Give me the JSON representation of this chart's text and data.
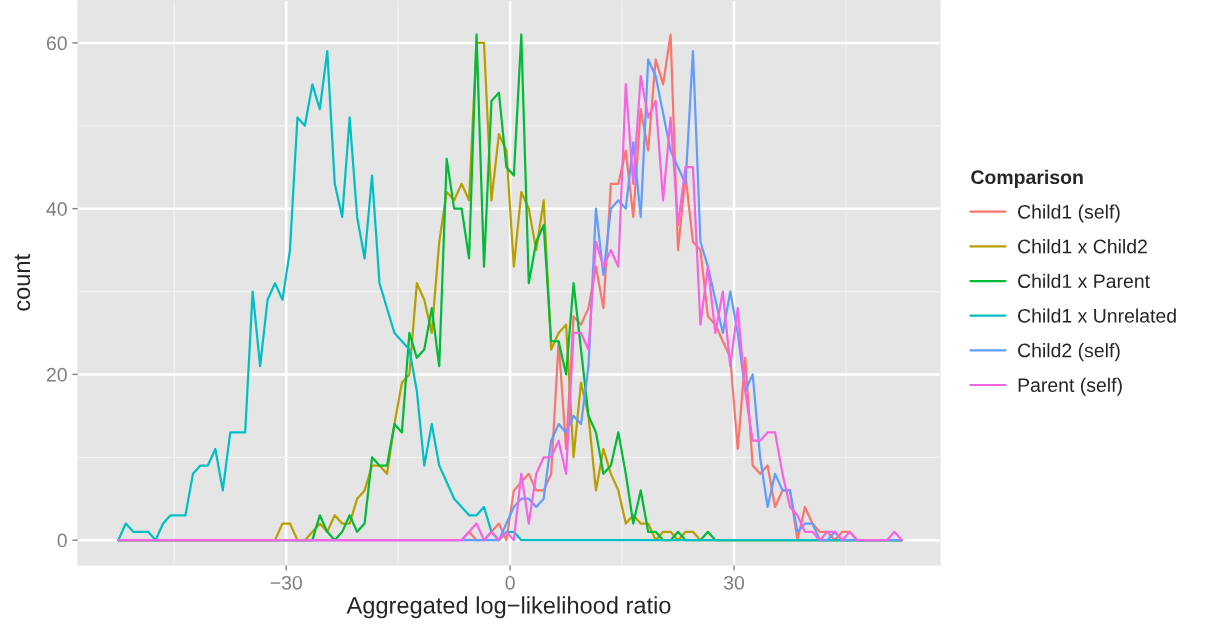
{
  "chart_data": {
    "type": "line",
    "xlabel": "Aggregated log−likelihood ratio",
    "ylabel": "count",
    "legend_title": "Comparison",
    "legend": "right",
    "grid": true,
    "xlim": [
      -57.9,
      57.6
    ],
    "ylim": [
      -3.0,
      65.1
    ],
    "xticks": [
      {
        "value": -30,
        "label": "−30"
      },
      0,
      30
    ],
    "yticks": [
      0,
      20,
      40,
      60
    ],
    "series": [
      {
        "name": "Child1 (self)",
        "color": "#f8766d",
        "x": [
          -52.5,
          -6.5,
          -5.5,
          -4.5,
          -3.5,
          -2.5,
          -1.5,
          -0.5,
          0.5,
          1.5,
          2.5,
          3.5,
          4.5,
          5.5,
          6.5,
          7.5,
          8.5,
          9.5,
          10.5,
          11.5,
          12.5,
          13.5,
          14.5,
          15.5,
          16.5,
          17.5,
          18.5,
          19.5,
          20.5,
          21.5,
          22.5,
          23.5,
          24.5,
          25.5,
          26.5,
          27.5,
          28.5,
          29.5,
          30.5,
          31.5,
          32.5,
          33.5,
          34.5,
          35.5,
          36.5,
          37.5,
          38.5,
          39.5,
          40.5,
          41.5,
          42.5,
          43.5,
          44.5,
          45.5,
          46.5,
          52.5
        ],
        "values": [
          0,
          0,
          1,
          0,
          0,
          1,
          2,
          0,
          6,
          7,
          8,
          6,
          6,
          8,
          24,
          11,
          27,
          26,
          28,
          33,
          28,
          43,
          43,
          47,
          39,
          52,
          47,
          58,
          55,
          61,
          35,
          44,
          36,
          35,
          27,
          26,
          24,
          22,
          11,
          22,
          9,
          8,
          9,
          4,
          6,
          6,
          0,
          4,
          2,
          1,
          1,
          0,
          1,
          1,
          0,
          0
        ]
      },
      {
        "name": "Child1 x Child2",
        "color": "#b79f00",
        "x": [
          -52.5,
          -31.5,
          -30.5,
          -29.5,
          -28.5,
          -27.5,
          -25.5,
          -24.5,
          -23.5,
          -22.5,
          -21.5,
          -20.5,
          -19.5,
          -18.5,
          -17.5,
          -16.5,
          -15.5,
          -14.5,
          -13.5,
          -12.5,
          -11.5,
          -10.5,
          -9.5,
          -8.5,
          -7.5,
          -6.5,
          -5.5,
          -4.5,
          -3.5,
          -2.5,
          -1.5,
          -0.5,
          0.5,
          1.5,
          2.5,
          3.5,
          4.5,
          5.5,
          6.5,
          7.5,
          8.5,
          9.5,
          10.5,
          11.5,
          12.5,
          13.5,
          14.5,
          15.5,
          16.5,
          17.5,
          18.5,
          19.5,
          20.5,
          21.5,
          22.5,
          23.5,
          24.5,
          25.5,
          52.5
        ],
        "values": [
          0,
          0,
          2,
          2,
          0,
          0,
          2,
          1,
          3,
          2,
          2,
          5,
          6,
          9,
          9,
          8,
          14,
          19,
          20,
          31,
          29,
          25,
          36,
          42,
          41,
          43,
          41,
          60,
          60,
          41,
          49,
          47,
          33,
          42,
          40,
          35,
          41,
          23,
          25,
          26,
          10,
          19,
          15,
          6,
          11,
          8,
          6,
          2,
          3,
          2,
          2,
          0,
          1,
          1,
          0,
          1,
          1,
          0,
          0
        ]
      },
      {
        "name": "Child1 x Parent",
        "color": "#00ba38",
        "x": [
          -52.5,
          -26.5,
          -25.5,
          -24.5,
          -23.5,
          -22.5,
          -21.5,
          -20.5,
          -19.5,
          -18.5,
          -17.5,
          -16.5,
          -15.5,
          -14.5,
          -13.5,
          -12.5,
          -11.5,
          -10.5,
          -9.5,
          -8.5,
          -7.5,
          -6.5,
          -5.5,
          -4.5,
          -3.5,
          -2.5,
          -1.5,
          -0.5,
          0.5,
          1.5,
          2.5,
          3.5,
          4.5,
          5.5,
          6.5,
          7.5,
          8.5,
          9.5,
          10.5,
          11.5,
          12.5,
          13.5,
          14.5,
          15.5,
          16.5,
          17.5,
          18.5,
          19.5,
          20.5,
          21.5,
          22.5,
          23.5,
          24.5,
          25.5,
          26.5,
          27.5,
          52.5
        ],
        "values": [
          0,
          0,
          3,
          1,
          0,
          1,
          3,
          1,
          2,
          10,
          9,
          9,
          14,
          13,
          25,
          22,
          23,
          28,
          21,
          46,
          40,
          40,
          34,
          61,
          33,
          53,
          54,
          45,
          44,
          61,
          31,
          36,
          38,
          24,
          24,
          20,
          31,
          23,
          15,
          13,
          8,
          9,
          13,
          8,
          2,
          6,
          1,
          1,
          0,
          0,
          1,
          0,
          0,
          0,
          1,
          0,
          0
        ]
      },
      {
        "name": "Child1 x Unrelated",
        "color": "#00bfc4",
        "x": [
          -52.5,
          -51.5,
          -50.5,
          -48.5,
          -47.5,
          -46.5,
          -45.5,
          -43.5,
          -42.5,
          -41.5,
          -40.5,
          -39.5,
          -38.5,
          -37.5,
          -35.5,
          -34.5,
          -33.5,
          -32.5,
          -31.5,
          -30.5,
          -29.5,
          -28.5,
          -27.5,
          -26.5,
          -25.5,
          -24.5,
          -23.5,
          -22.5,
          -21.5,
          -20.5,
          -19.5,
          -18.5,
          -17.5,
          -15.5,
          -13.5,
          -12.5,
          -11.5,
          -10.5,
          -9.5,
          -7.5,
          -5.5,
          -4.5,
          -3.5,
          -2.5,
          -1.5,
          -0.5,
          0.5,
          1.5,
          52.5
        ],
        "values": [
          0,
          2,
          1,
          1,
          0,
          2,
          3,
          3,
          8,
          9,
          9,
          11,
          6,
          13,
          13,
          30,
          21,
          29,
          31,
          29,
          35,
          51,
          50,
          55,
          52,
          59,
          43,
          39,
          51,
          39,
          34,
          44,
          31,
          25,
          23,
          18,
          9,
          14,
          9,
          5,
          3,
          3,
          4,
          1,
          0,
          1,
          1,
          0,
          0
        ]
      },
      {
        "name": "Child2 (self)",
        "color": "#619cff",
        "x": [
          -52.5,
          -1.5,
          -0.5,
          0.5,
          1.5,
          2.5,
          3.5,
          4.5,
          5.5,
          6.5,
          7.5,
          8.5,
          9.5,
          10.5,
          11.5,
          12.5,
          13.5,
          14.5,
          15.5,
          16.5,
          17.5,
          18.5,
          19.5,
          21.5,
          23.5,
          24.5,
          25.5,
          26.5,
          27.5,
          28.5,
          29.5,
          30.5,
          31.5,
          32.5,
          33.5,
          34.5,
          35.5,
          36.5,
          37.5,
          38.5,
          39.5,
          40.5,
          41.5,
          42.5,
          43.5,
          44.5,
          52.5
        ],
        "values": [
          0,
          0,
          2,
          4,
          5,
          5,
          4,
          5,
          12,
          14,
          13,
          15,
          14,
          21,
          40,
          32,
          40,
          41,
          40,
          48,
          39,
          58,
          56,
          47,
          43,
          59,
          36,
          33,
          29,
          25,
          30,
          25,
          18,
          20,
          10,
          4,
          8,
          6,
          6,
          1,
          2,
          2,
          0,
          0,
          1,
          0,
          0
        ]
      },
      {
        "name": "Parent (self)",
        "color": "#f564e3",
        "x": [
          -52.5,
          -6.5,
          -5.5,
          -4.5,
          -3.5,
          -2.5,
          -1.5,
          -0.5,
          0.5,
          1.5,
          2.5,
          3.5,
          4.5,
          5.5,
          6.5,
          7.5,
          8.5,
          9.5,
          10.5,
          11.5,
          12.5,
          13.5,
          14.5,
          15.5,
          16.5,
          17.5,
          18.5,
          19.5,
          20.5,
          21.5,
          22.5,
          23.5,
          24.5,
          25.5,
          26.5,
          27.5,
          28.5,
          29.5,
          30.5,
          31.5,
          32.5,
          33.5,
          34.5,
          35.5,
          36.5,
          37.5,
          38.5,
          39.5,
          40.5,
          41.5,
          42.5,
          43.5,
          44.5,
          45.5,
          46.5,
          47.5,
          48.5,
          49.5,
          50.5,
          51.5,
          52.5
        ],
        "values": [
          0,
          0,
          1,
          2,
          0,
          1,
          0,
          1,
          0,
          8,
          2,
          8,
          10,
          10,
          12,
          8,
          25,
          25,
          23,
          36,
          33,
          35,
          33,
          55,
          43,
          56,
          51,
          53,
          41,
          51,
          38,
          45,
          45,
          26,
          33,
          25,
          30,
          21,
          28,
          18,
          12,
          12,
          13,
          13,
          8,
          4,
          3,
          1,
          1,
          0,
          1,
          1,
          0,
          1,
          0,
          0,
          0,
          0,
          0,
          1,
          0
        ]
      }
    ]
  }
}
